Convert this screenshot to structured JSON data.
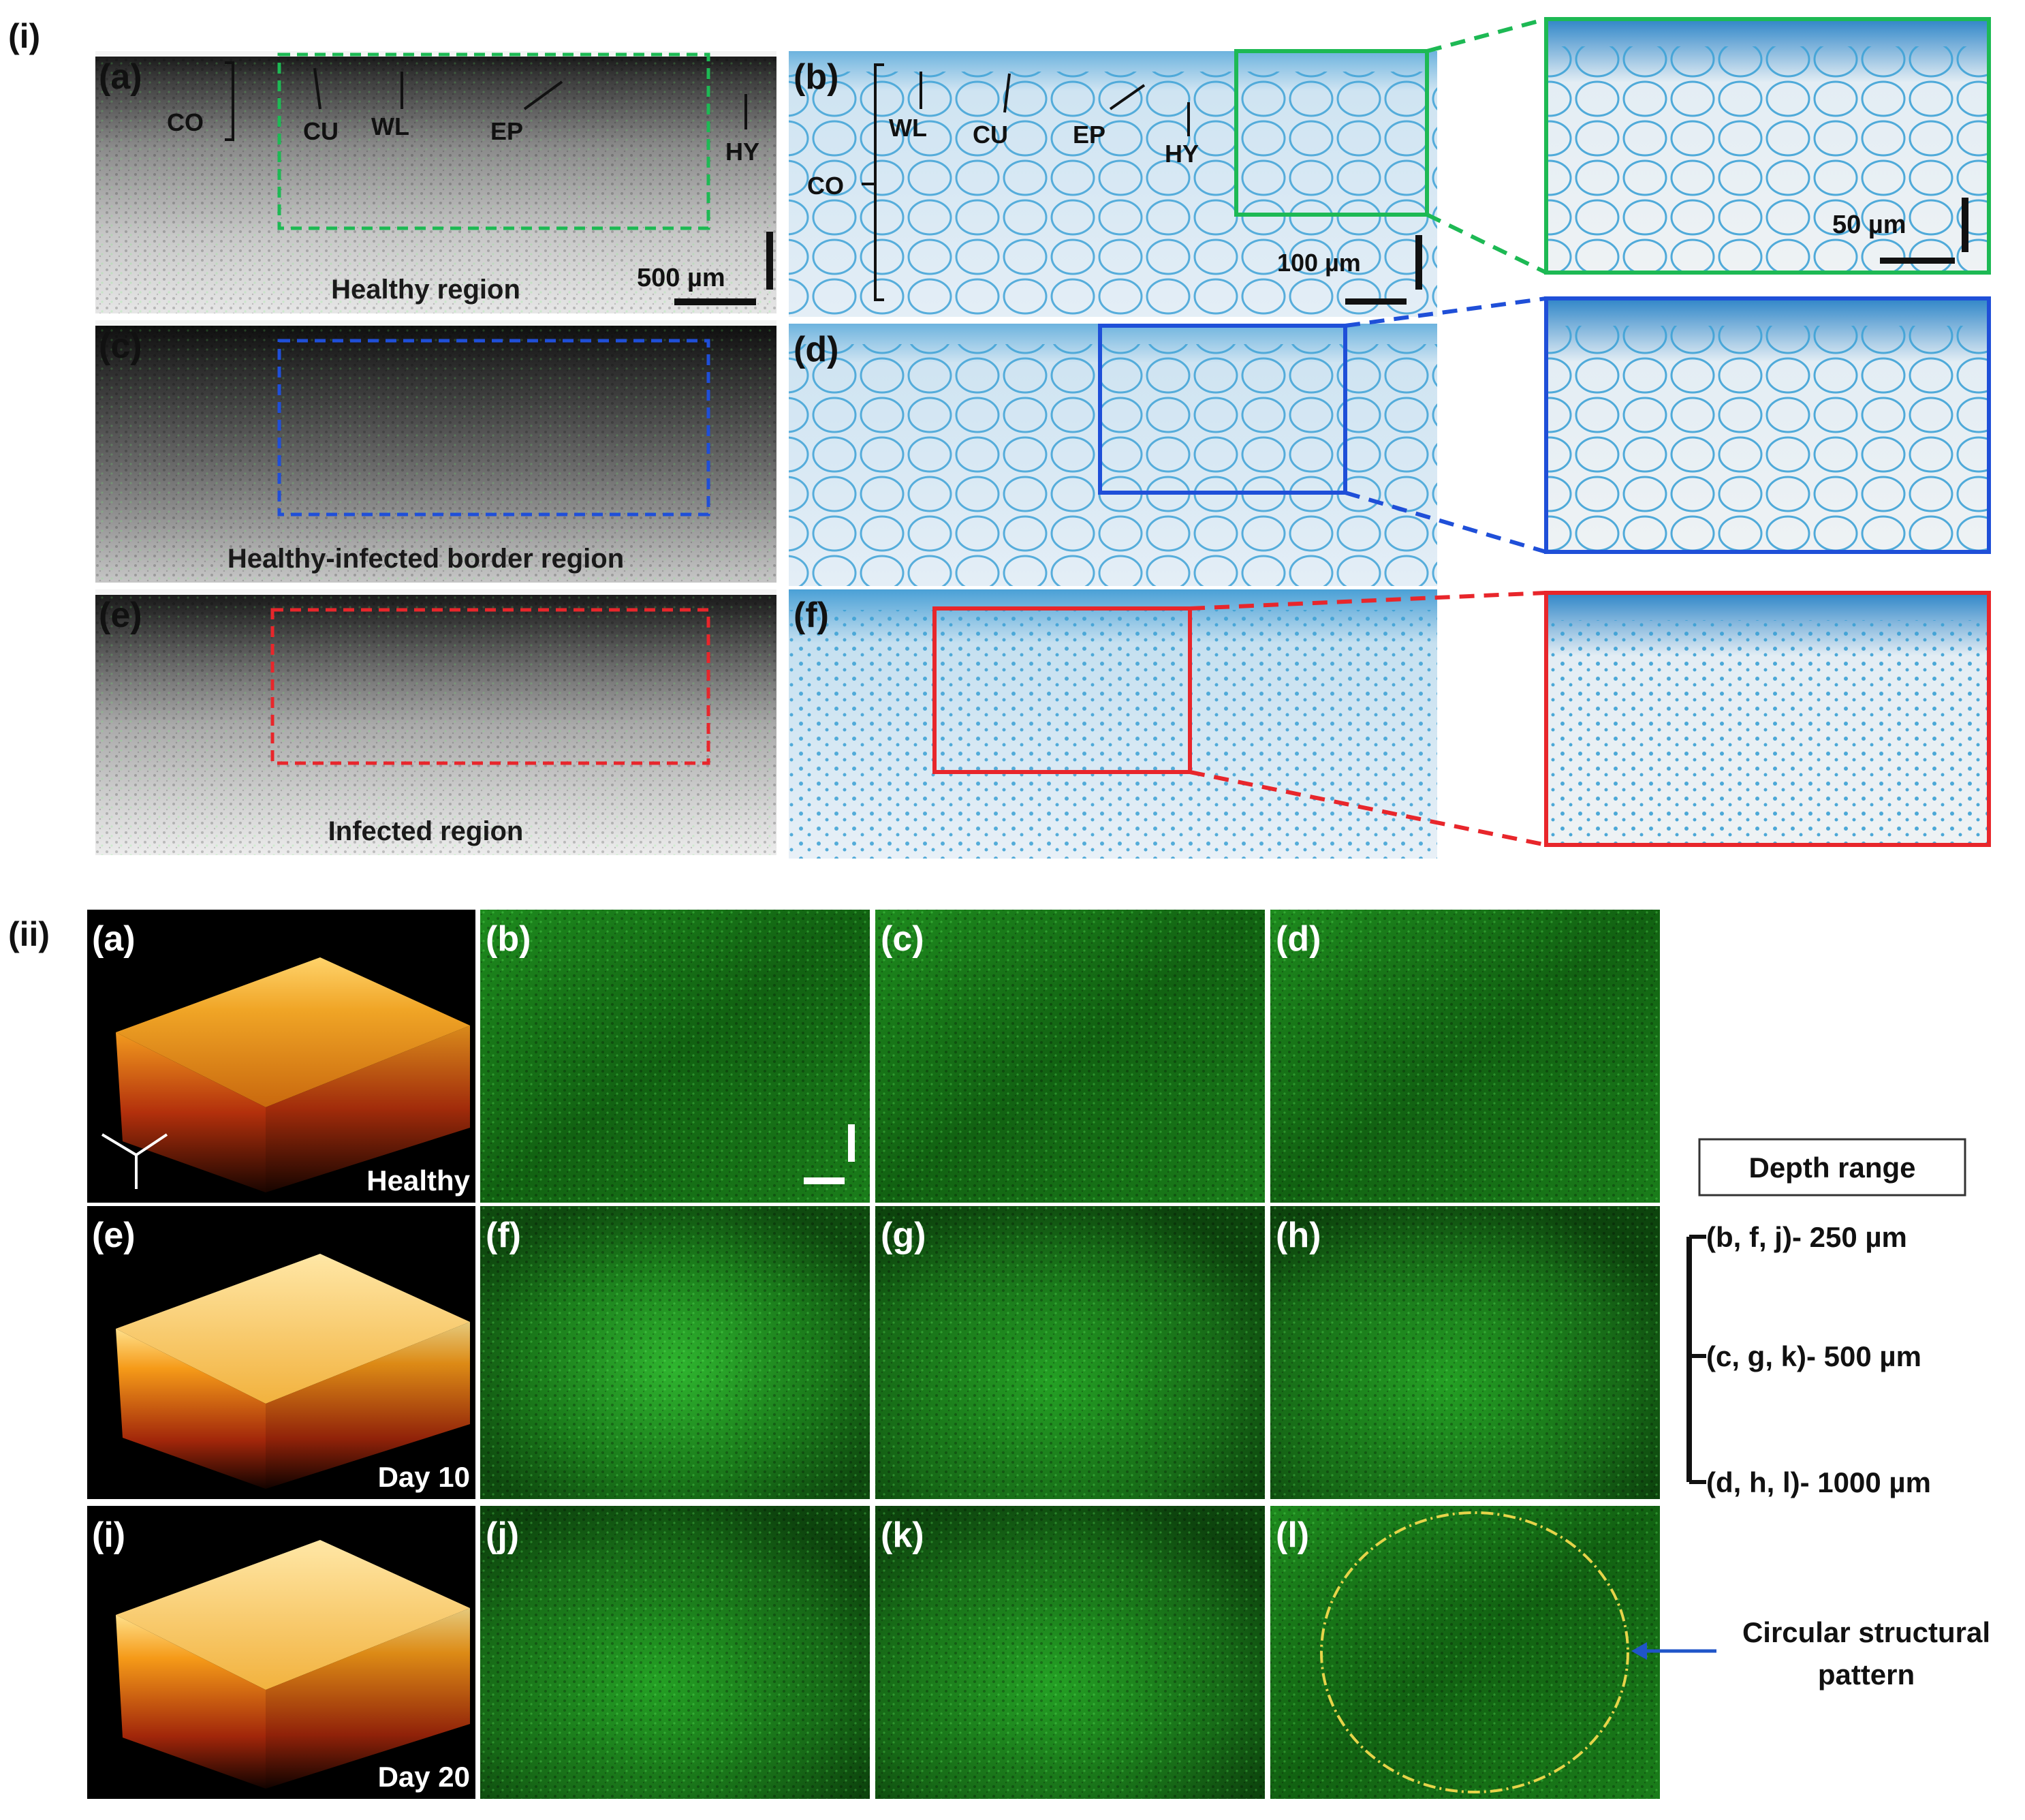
{
  "section_i": {
    "label": "(i)",
    "panels": [
      {
        "id": "a",
        "label": "(a)",
        "caption": "Healthy region",
        "scale_bar": "500 µm",
        "annotations": [
          {
            "name": "co",
            "text": "CO"
          },
          {
            "name": "cu",
            "text": "CU"
          },
          {
            "name": "wl",
            "text": "WL"
          },
          {
            "name": "ep",
            "text": "EP"
          },
          {
            "name": "hy",
            "text": "HY"
          }
        ]
      },
      {
        "id": "b",
        "label": "(b)",
        "scale_bar": "100 µm",
        "annotations": [
          {
            "name": "wl",
            "text": "WL"
          },
          {
            "name": "cu",
            "text": "CU"
          },
          {
            "name": "ep",
            "text": "EP"
          },
          {
            "name": "hy",
            "text": "HY"
          },
          {
            "name": "co",
            "text": "CO"
          }
        ]
      },
      {
        "id": "b-zoom",
        "scale_bar": "50 µm"
      },
      {
        "id": "c",
        "label": "(c)",
        "caption": "Healthy-infected border region"
      },
      {
        "id": "d",
        "label": "(d)"
      },
      {
        "id": "e",
        "label": "(e)",
        "caption": "Infected region"
      },
      {
        "id": "f",
        "label": "(f)"
      }
    ]
  },
  "section_ii": {
    "label": "(ii)",
    "panels_3d": [
      {
        "id": "a",
        "label": "(a)",
        "caption": "Healthy"
      },
      {
        "id": "e",
        "label": "(e)",
        "caption": "Day 10"
      },
      {
        "id": "i",
        "label": "(i)",
        "caption": "Day 20"
      }
    ],
    "green_panels": [
      {
        "id": "b",
        "label": "(b)"
      },
      {
        "id": "c",
        "label": "(c)"
      },
      {
        "id": "d",
        "label": "(d)"
      },
      {
        "id": "f",
        "label": "(f)"
      },
      {
        "id": "g",
        "label": "(g)"
      },
      {
        "id": "h",
        "label": "(h)"
      },
      {
        "id": "j",
        "label": "(j)"
      },
      {
        "id": "k",
        "label": "(k)"
      },
      {
        "id": "l",
        "label": "(l)"
      }
    ],
    "legend": {
      "title": "Depth range",
      "items": [
        {
          "text": "(b, f, j)-  250 µm"
        },
        {
          "text": "(c, g, k)- 500 µm"
        },
        {
          "text": "(d, h, l)- 1000 µm"
        }
      ]
    },
    "annotation": {
      "line1": "Circular structural",
      "line2": "pattern"
    }
  },
  "colors": {
    "green_box": "#1db954",
    "blue_box": "#1f4fd8",
    "red_box": "#e8262b",
    "histology_bg": "#dce9f3",
    "stain": "#2a8fc9",
    "oct_dark": "#2a2a2a",
    "fluor_green": "#1f8a1f",
    "ellipse": "#e7d44a",
    "arrow": "#2055c8"
  }
}
